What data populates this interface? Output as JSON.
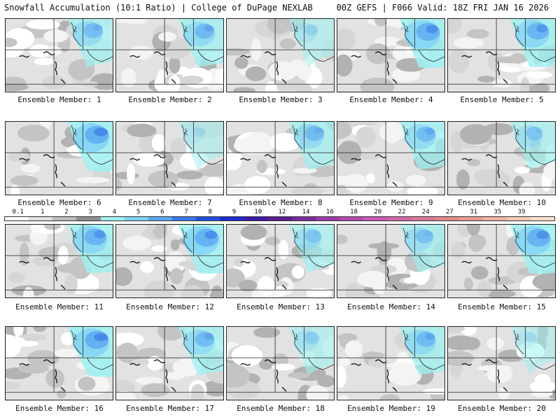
{
  "header": {
    "title_left": "Snowfall Accumulation (10:1 Ratio) | College of DuPage NEXLAB",
    "title_right": "00Z GEFS | F066 Valid: 18Z FRI JAN 16 2026"
  },
  "colorbar": {
    "labels": [
      "0.1",
      "1",
      "2",
      "3",
      "4",
      "5",
      "6",
      "7",
      "8",
      "9",
      "10",
      "12",
      "14",
      "16",
      "18",
      "20",
      "22",
      "24",
      "27",
      "31",
      "35",
      "39"
    ],
    "colors": [
      "#ffffff",
      "#e0e0e0",
      "#bdbdbd",
      "#8f8f8f",
      "#9ef0f0",
      "#7fd0f5",
      "#5aa8f0",
      "#3a78ea",
      "#2050e0",
      "#1e2ad0",
      "#3a1aa8",
      "#5a1e90",
      "#7a2a9a",
      "#9a3aa8",
      "#b04ab0",
      "#c858b8",
      "#d068a8",
      "#d87898",
      "#e08a88",
      "#e69a90",
      "#eeb2a6",
      "#f4cab8",
      "#fae0cc"
    ]
  },
  "panels": [
    {
      "label": "Ensemble Member: 1",
      "snow": 0.55
    },
    {
      "label": "Ensemble Member: 2",
      "snow": 0.6
    },
    {
      "label": "Ensemble Member: 3",
      "snow": 0.3
    },
    {
      "label": "Ensemble Member: 4",
      "snow": 0.75
    },
    {
      "label": "Ensemble Member: 5",
      "snow": 0.7
    },
    {
      "label": "Ensemble Member: 6",
      "snow": 0.8
    },
    {
      "label": "Ensemble Member: 7",
      "snow": 0.2
    },
    {
      "label": "Ensemble Member: 8",
      "snow": 0.55
    },
    {
      "label": "Ensemble Member: 9",
      "snow": 0.6
    },
    {
      "label": "Ensemble Member: 10",
      "snow": 0.45
    },
    {
      "label": "Ensemble Member: 11",
      "snow": 0.7
    },
    {
      "label": "Ensemble Member: 12",
      "snow": 0.75
    },
    {
      "label": "Ensemble Member: 13",
      "snow": 0.45
    },
    {
      "label": "Ensemble Member: 14",
      "snow": 0.5
    },
    {
      "label": "Ensemble Member: 15",
      "snow": 0.75
    },
    {
      "label": "Ensemble Member: 16",
      "snow": 0.8
    },
    {
      "label": "Ensemble Member: 17",
      "snow": 0.6
    },
    {
      "label": "Ensemble Member: 18",
      "snow": 0.35
    },
    {
      "label": "Ensemble Member: 19",
      "snow": 0.6
    },
    {
      "label": "Ensemble Member: 20",
      "snow": 0.2
    }
  ]
}
